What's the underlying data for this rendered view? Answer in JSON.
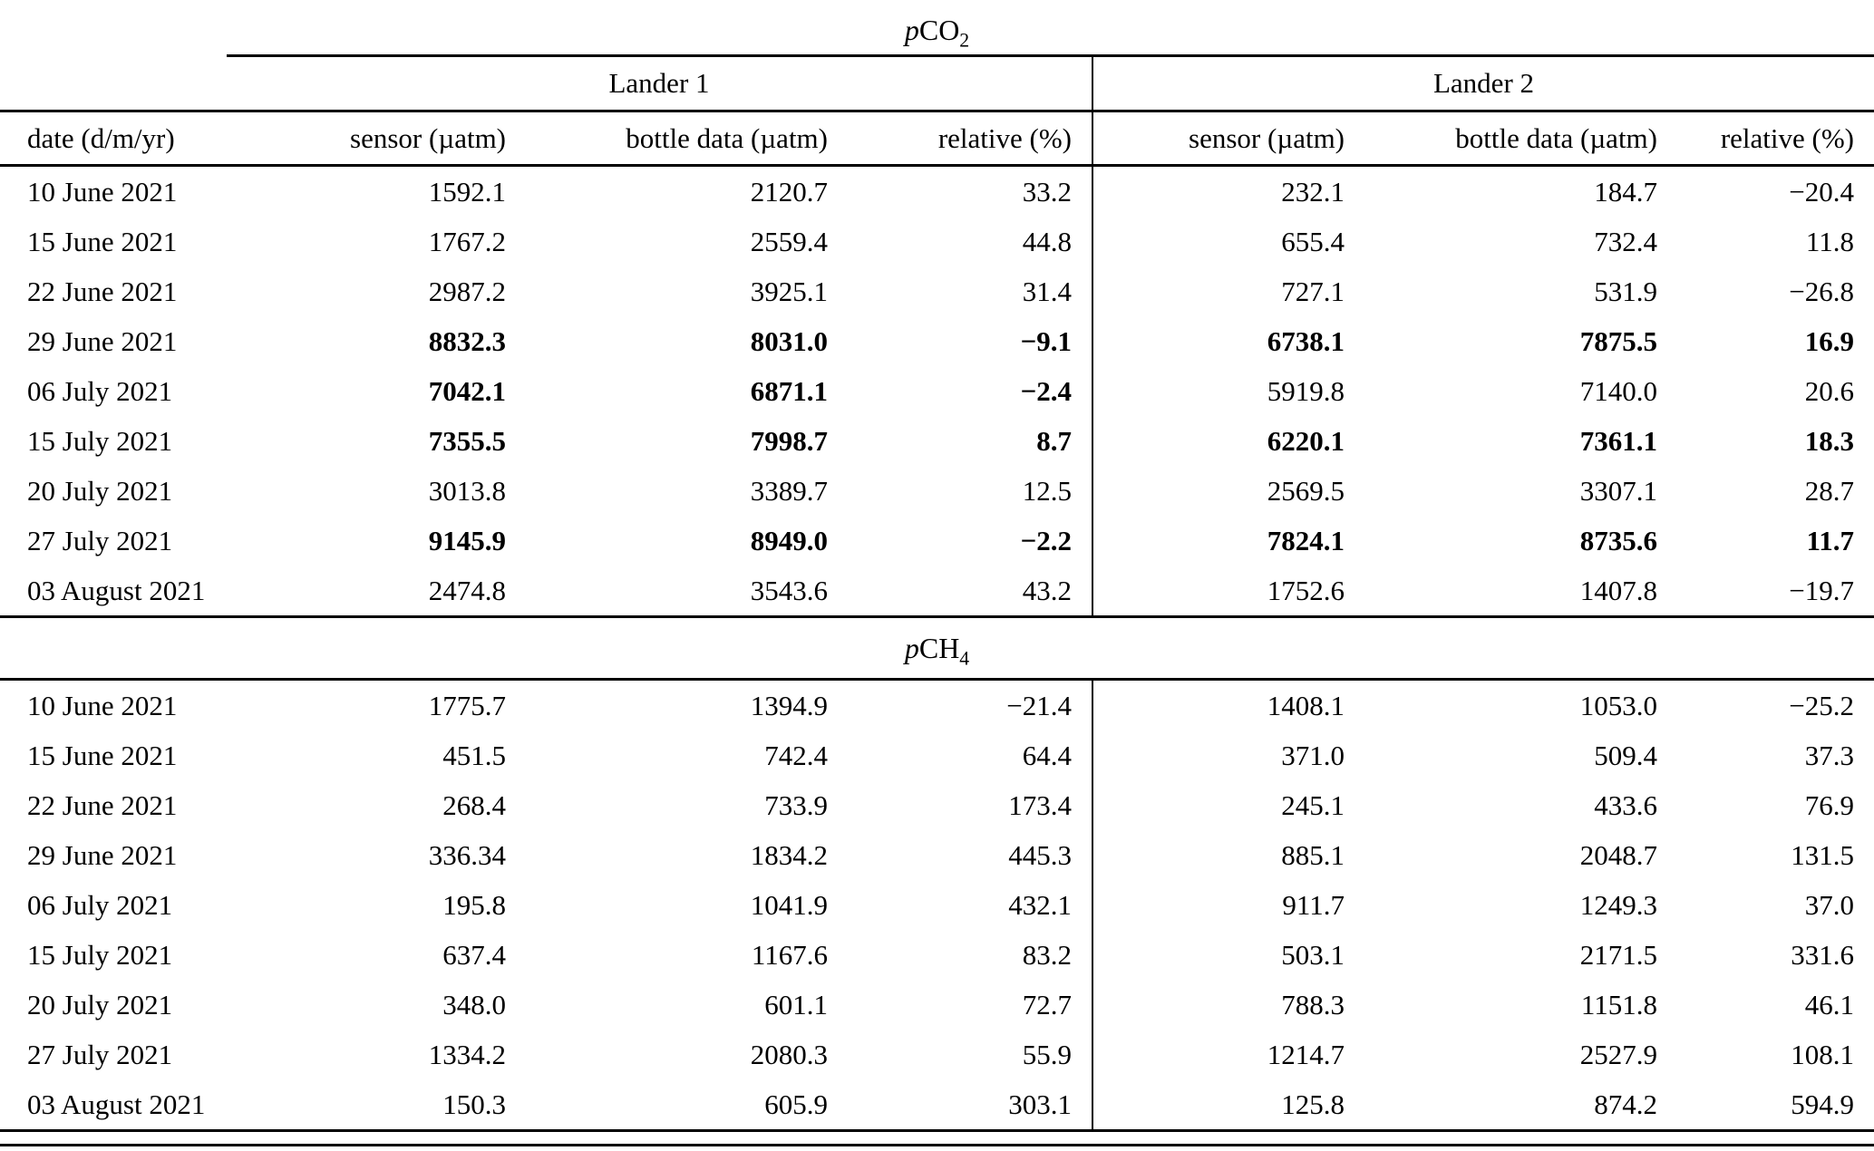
{
  "page": {
    "background_color": "#ffffff",
    "text_color": "#000000",
    "rule_color": "#000000"
  },
  "table": {
    "group_headers": [
      "Lander 1",
      "Lander 2"
    ],
    "col_headers": [
      "date (d/m/yr)",
      "sensor (µatm)",
      "bottle data (µatm)",
      "relative (%)",
      "sensor (µatm)",
      "bottle data (µatm)",
      "relative (%)"
    ],
    "sections": [
      {
        "title_prefix": "p",
        "title_main": "CO",
        "title_sub": "2",
        "rows": [
          {
            "cells": [
              "10 June 2021",
              "1592.1",
              "2120.7",
              "33.2",
              "232.1",
              "184.7",
              "−20.4"
            ],
            "bold": []
          },
          {
            "cells": [
              "15 June 2021",
              "1767.2",
              "2559.4",
              "44.8",
              "655.4",
              "732.4",
              "11.8"
            ],
            "bold": []
          },
          {
            "cells": [
              "22 June 2021",
              "2987.2",
              "3925.1",
              "31.4",
              "727.1",
              "531.9",
              "−26.8"
            ],
            "bold": []
          },
          {
            "cells": [
              "29 June 2021",
              "8832.3",
              "8031.0",
              "−9.1",
              "6738.1",
              "7875.5",
              "16.9"
            ],
            "bold": [
              1,
              2,
              3,
              4,
              5,
              6
            ]
          },
          {
            "cells": [
              "06 July 2021",
              "7042.1",
              "6871.1",
              "−2.4",
              "5919.8",
              "7140.0",
              "20.6"
            ],
            "bold": [
              1,
              2,
              3
            ]
          },
          {
            "cells": [
              "15 July 2021",
              "7355.5",
              "7998.7",
              "8.7",
              "6220.1",
              "7361.1",
              "18.3"
            ],
            "bold": [
              1,
              2,
              3,
              4,
              5,
              6
            ]
          },
          {
            "cells": [
              "20 July 2021",
              "3013.8",
              "3389.7",
              "12.5",
              "2569.5",
              "3307.1",
              "28.7"
            ],
            "bold": []
          },
          {
            "cells": [
              "27 July 2021",
              "9145.9",
              "8949.0",
              "−2.2",
              "7824.1",
              "8735.6",
              "11.7"
            ],
            "bold": [
              1,
              2,
              3,
              4,
              5,
              6
            ]
          },
          {
            "cells": [
              "03 August 2021",
              "2474.8",
              "3543.6",
              "43.2",
              "1752.6",
              "1407.8",
              "−19.7"
            ],
            "bold": []
          }
        ]
      },
      {
        "title_prefix": "p",
        "title_main": "CH",
        "title_sub": "4",
        "rows": [
          {
            "cells": [
              "10 June 2021",
              "1775.7",
              "1394.9",
              "−21.4",
              "1408.1",
              "1053.0",
              "−25.2"
            ],
            "bold": []
          },
          {
            "cells": [
              "15 June 2021",
              "451.5",
              "742.4",
              "64.4",
              "371.0",
              "509.4",
              "37.3"
            ],
            "bold": []
          },
          {
            "cells": [
              "22 June 2021",
              "268.4",
              "733.9",
              "173.4",
              "245.1",
              "433.6",
              "76.9"
            ],
            "bold": []
          },
          {
            "cells": [
              "29 June 2021",
              "336.34",
              "1834.2",
              "445.3",
              "885.1",
              "2048.7",
              "131.5"
            ],
            "bold": []
          },
          {
            "cells": [
              "06 July 2021",
              "195.8",
              "1041.9",
              "432.1",
              "911.7",
              "1249.3",
              "37.0"
            ],
            "bold": []
          },
          {
            "cells": [
              "15 July 2021",
              "637.4",
              "1167.6",
              "83.2",
              "503.1",
              "2171.5",
              "331.6"
            ],
            "bold": []
          },
          {
            "cells": [
              "20 July 2021",
              "348.0",
              "601.1",
              "72.7",
              "788.3",
              "1151.8",
              "46.1"
            ],
            "bold": []
          },
          {
            "cells": [
              "27 July 2021",
              "1334.2",
              "2080.3",
              "55.9",
              "1214.7",
              "2527.9",
              "108.1"
            ],
            "bold": []
          },
          {
            "cells": [
              "03 August 2021",
              "150.3",
              "605.9",
              "303.1",
              "125.8",
              "874.2",
              "594.9"
            ],
            "bold": []
          }
        ]
      }
    ]
  }
}
